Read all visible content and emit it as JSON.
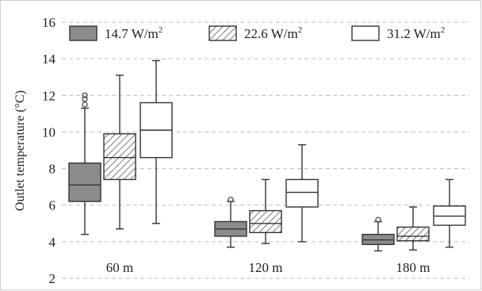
{
  "chart_data": {
    "type": "box",
    "ylabel": "Outlet temperature (°C)",
    "ylim": [
      2,
      16
    ],
    "yticks": [
      "2",
      "4",
      "6",
      "8",
      "10",
      "12",
      "14",
      "16"
    ],
    "ytick_values": [
      2,
      4,
      6,
      8,
      10,
      12,
      14,
      16
    ],
    "grid": true,
    "legend_position": "top",
    "categories": [
      "60 m",
      "120 m",
      "180 m"
    ],
    "series": [
      {
        "name": "14.7 W/m",
        "name_sup": "2",
        "fill": "#8c8c8c",
        "pattern": "solid",
        "boxes": [
          {
            "min": 4.4,
            "q1": 6.2,
            "median": 7.1,
            "q3": 8.3,
            "max": 11.3,
            "outliers": [
              11.5,
              11.8,
              12.0
            ]
          },
          {
            "min": 3.7,
            "q1": 4.3,
            "median": 4.7,
            "q3": 5.1,
            "max": 6.2,
            "outliers": [
              6.3
            ]
          },
          {
            "min": 3.5,
            "q1": 3.85,
            "median": 4.1,
            "q3": 4.4,
            "max": 5.1,
            "outliers": [
              5.2
            ]
          }
        ]
      },
      {
        "name": "22.6 W/m",
        "name_sup": "2",
        "fill": "#ffffff",
        "pattern": "hatch",
        "boxes": [
          {
            "min": 4.7,
            "q1": 7.4,
            "median": 8.6,
            "q3": 9.9,
            "max": 13.1,
            "outliers": []
          },
          {
            "min": 3.9,
            "q1": 4.5,
            "median": 5.0,
            "q3": 5.7,
            "max": 7.4,
            "outliers": []
          },
          {
            "min": 3.55,
            "q1": 4.05,
            "median": 4.3,
            "q3": 4.8,
            "max": 5.9,
            "outliers": []
          }
        ]
      },
      {
        "name": "31.2 W/m",
        "name_sup": "2",
        "fill": "#ffffff",
        "pattern": "solid",
        "boxes": [
          {
            "min": 5.0,
            "q1": 8.6,
            "median": 10.1,
            "q3": 11.6,
            "max": 13.9,
            "outliers": []
          },
          {
            "min": 4.0,
            "q1": 5.9,
            "median": 6.7,
            "q3": 7.4,
            "max": 9.3,
            "outliers": []
          },
          {
            "min": 3.7,
            "q1": 4.9,
            "median": 5.4,
            "q3": 5.95,
            "max": 7.4,
            "outliers": []
          }
        ]
      }
    ]
  }
}
